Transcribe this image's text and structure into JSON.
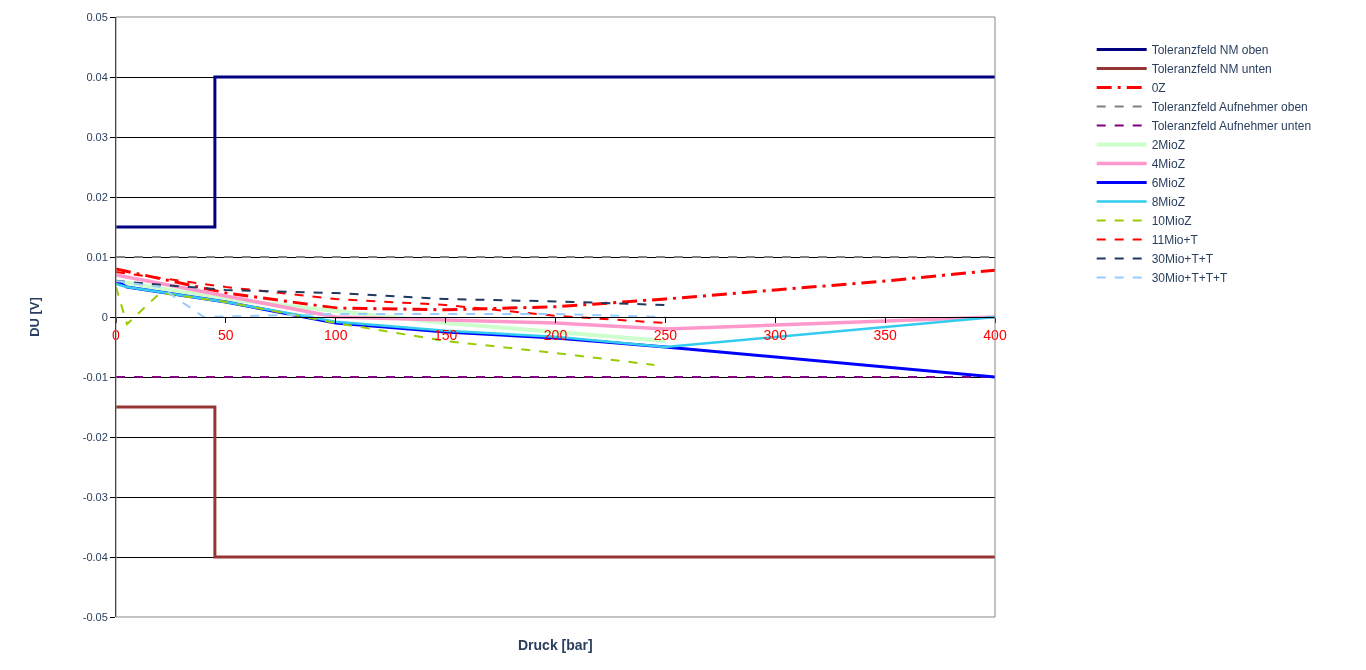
{
  "chart_data": {
    "type": "line",
    "xlabel": "Druck [bar]",
    "ylabel": "DU [V]",
    "xlim": [
      0,
      400
    ],
    "xticks": [
      0,
      50,
      100,
      150,
      200,
      250,
      300,
      350,
      400
    ],
    "ylim": [
      -0.05,
      0.05
    ],
    "yticks": [
      -0.05,
      -0.04,
      -0.03,
      -0.02,
      -0.01,
      0,
      0.01,
      0.02,
      0.03,
      0.04,
      0.05
    ],
    "grid": "y",
    "legend": "right",
    "marker": "none",
    "series": [
      {
        "name": "Toleranzfeld NM oben",
        "type": "step",
        "color": "#000080",
        "line_style": "solid",
        "x": [
          0,
          45,
          400
        ],
        "values": [
          0.015,
          0.04,
          0.04
        ]
      },
      {
        "name": "Toleranzfeld NM unten",
        "type": "step",
        "color": "#943634",
        "line_style": "solid",
        "x": [
          0,
          45,
          400
        ],
        "values": [
          -0.015,
          -0.04,
          -0.04
        ]
      },
      {
        "name": "0Z",
        "color": "#ff0000",
        "line_style": "dashdot",
        "x": [
          0,
          50,
          100,
          150,
          200,
          250,
          300,
          350,
          400
        ],
        "values": [
          0.008,
          0.004,
          0.0015,
          0.0012,
          0.0017,
          0.003,
          0.0045,
          0.006,
          0.0078
        ]
      },
      {
        "name": "Toleranzfeld Aufnehmer oben",
        "color": "#808080",
        "line_style": "dashed",
        "x": [
          0,
          400
        ],
        "values": [
          0.01,
          0.01
        ]
      },
      {
        "name": "Toleranzfeld Aufnehmer unten",
        "color": "#800080",
        "line_style": "dashed",
        "x": [
          0,
          400
        ],
        "values": [
          -0.01,
          -0.01
        ]
      },
      {
        "name": "2MioZ",
        "color": "#ccffcc",
        "line_style": "solid",
        "x": [
          0,
          50,
          100,
          150,
          200,
          250
        ],
        "values": [
          0.006,
          0.003,
          0.001,
          -0.001,
          -0.0025,
          -0.004
        ]
      },
      {
        "name": "4MioZ",
        "color": "#ff99cc",
        "line_style": "solid",
        "x": [
          0,
          50,
          100,
          150,
          200,
          250,
          400
        ],
        "values": [
          0.007,
          0.0035,
          0,
          -0.0005,
          -0.001,
          -0.002,
          0
        ]
      },
      {
        "name": "6MioZ",
        "color": "#0000ff",
        "line_style": "solid",
        "x": [
          0,
          5,
          50,
          100,
          150,
          200,
          250,
          400
        ],
        "values": [
          0.006,
          0.005,
          0.0025,
          -0.001,
          -0.0025,
          -0.0035,
          -0.005,
          -0.01
        ]
      },
      {
        "name": "8MioZ",
        "color": "#33ccee",
        "line_style": "solid",
        "x": [
          0,
          5,
          50,
          100,
          150,
          200,
          250,
          400
        ],
        "values": [
          0.0055,
          0.005,
          0.0025,
          -0.0008,
          -0.0023,
          -0.0033,
          -0.005,
          0
        ]
      },
      {
        "name": "10MioZ",
        "color": "#99cc00",
        "line_style": "dashed",
        "x": [
          0,
          5,
          20,
          50,
          100,
          150,
          200,
          245
        ],
        "values": [
          0.005,
          -0.0012,
          0.004,
          0.0025,
          -0.001,
          -0.004,
          -0.006,
          -0.008
        ]
      },
      {
        "name": "11Mio+T",
        "color": "#ff0000",
        "line_style": "dashed",
        "x": [
          0,
          50,
          100,
          150,
          200,
          250
        ],
        "values": [
          0.0075,
          0.005,
          0.003,
          0.002,
          0.0002,
          -0.001
        ]
      },
      {
        "name": "30Mio+T+T",
        "color": "#1f3a5f",
        "line_style": "dashed",
        "x": [
          0,
          50,
          100,
          150,
          200,
          250
        ],
        "values": [
          0.006,
          0.0045,
          0.004,
          0.003,
          0.0026,
          0.002
        ]
      },
      {
        "name": "30Mio+T+T+T",
        "color": "#99ccff",
        "line_style": "dashed",
        "x": [
          0,
          20,
          40,
          100,
          150,
          200,
          250
        ],
        "values": [
          0.006,
          0.005,
          0,
          0.0005,
          0.0005,
          0.0005,
          0
        ]
      }
    ]
  }
}
